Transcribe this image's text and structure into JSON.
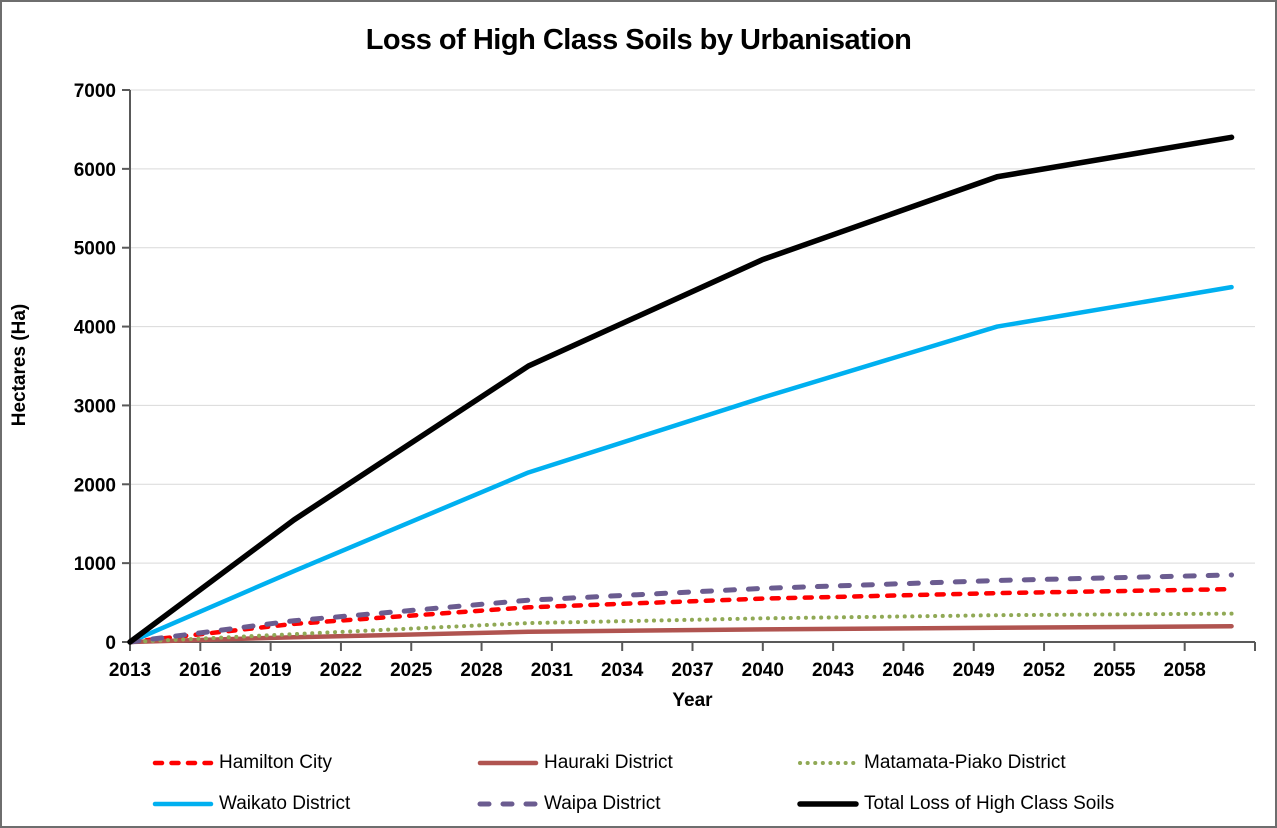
{
  "window": {
    "background": "#ffffff",
    "border_color": "#6e6e6e"
  },
  "chart_data": {
    "type": "line",
    "title": "Loss of High Class Soils by Urbanisation",
    "xlabel": "Year",
    "ylabel": "Hectares (Ha)",
    "xlim": [
      2013,
      2061
    ],
    "ylim": [
      0,
      7000
    ],
    "grid": "horizontal-light",
    "gridline_color": "#d9d9d9",
    "axis_color": "#595959",
    "xticks": [
      2013,
      2016,
      2019,
      2022,
      2025,
      2028,
      2031,
      2034,
      2037,
      2040,
      2043,
      2046,
      2049,
      2052,
      2055,
      2058
    ],
    "yticks": [
      0,
      1000,
      2000,
      3000,
      4000,
      5000,
      6000,
      7000
    ],
    "x": [
      2013,
      2020,
      2030,
      2040,
      2050,
      2060
    ],
    "series": [
      {
        "name": "Hamilton City",
        "color": "#fe0000",
        "style": "dashed",
        "width": 4.5,
        "values": [
          0,
          230,
          440,
          550,
          620,
          670
        ]
      },
      {
        "name": "Hauraki District",
        "color": "#b05450",
        "style": "solid",
        "width": 4.5,
        "values": [
          0,
          60,
          130,
          160,
          180,
          200
        ]
      },
      {
        "name": "Matamata-Piako District",
        "color": "#90a955",
        "style": "dotted",
        "width": 4,
        "values": [
          0,
          100,
          240,
          300,
          340,
          360
        ]
      },
      {
        "name": "Waikato District",
        "color": "#00b0f0",
        "style": "solid",
        "width": 4.5,
        "values": [
          0,
          900,
          2150,
          3100,
          4000,
          4500
        ]
      },
      {
        "name": "Waipa District",
        "color": "#6b5c90",
        "style": "long-dashed",
        "width": 5,
        "values": [
          0,
          270,
          530,
          680,
          780,
          850
        ]
      },
      {
        "name": "Total Loss of High Class Soils",
        "color": "#000000",
        "style": "solid",
        "width": 5.5,
        "values": [
          0,
          1550,
          3500,
          4850,
          5900,
          6400
        ]
      }
    ],
    "legend_position": "bottom",
    "legend_rows": 2,
    "legend_columns": 3
  }
}
